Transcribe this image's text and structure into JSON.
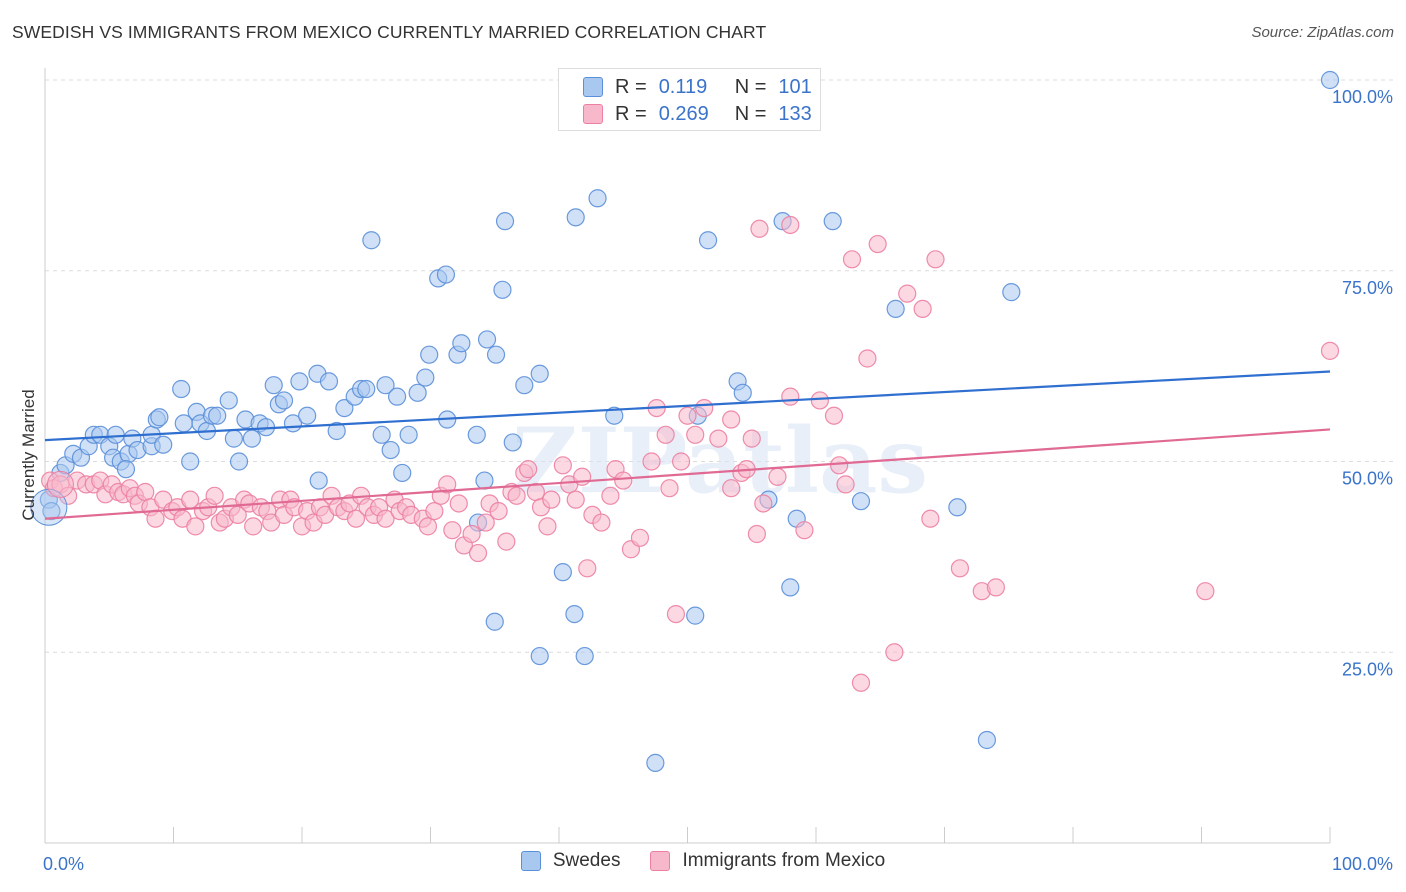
{
  "title": "SWEDISH VS IMMIGRANTS FROM MEXICO CURRENTLY MARRIED CORRELATION CHART",
  "source": "Source: ZipAtlas.com",
  "watermark": "ZIPatlas",
  "legend": {
    "rows": [
      {
        "r_label": "R =",
        "r_value": "0.119",
        "n_label": "N =",
        "n_value": "101",
        "swatch_color": "#a9c8f0"
      },
      {
        "r_label": "R =",
        "r_value": "0.269",
        "n_label": "N =",
        "n_value": "133",
        "swatch_color": "#f7b8cb"
      }
    ]
  },
  "bottom_legend": [
    {
      "label": "Swedes",
      "color": "#a9c8f0"
    },
    {
      "label": "Immigrants from Mexico",
      "color": "#f7b8cb"
    }
  ],
  "chart_data": {
    "type": "scatter",
    "title": "SWEDISH VS IMMIGRANTS FROM MEXICO CURRENTLY MARRIED CORRELATION CHART",
    "ylabel": "Currently Married",
    "xlabel": "",
    "xlim": [
      0,
      100
    ],
    "ylim": [
      0,
      100
    ],
    "x_tick_labels": [
      "0.0%",
      "100.0%"
    ],
    "y_tick_labels": [
      "25.0%",
      "50.0%",
      "75.0%",
      "100.0%"
    ],
    "y_ticks": [
      25,
      50,
      75,
      100
    ],
    "grid": "horizontal dashed",
    "series": [
      {
        "name": "Swedes",
        "color": "#5b8fd9",
        "fill": "#a9c8f0",
        "line_color": "#2f6fd0",
        "trend": {
          "x": [
            0,
            100
          ],
          "y": [
            52.8,
            61.8
          ]
        },
        "points": [
          [
            0.3,
            45
          ],
          [
            0.5,
            43.5
          ],
          [
            1.2,
            48.5
          ],
          [
            1.6,
            49.5
          ],
          [
            2.2,
            51
          ],
          [
            2.8,
            50.5
          ],
          [
            3.4,
            52
          ],
          [
            3.8,
            53.5
          ],
          [
            4.3,
            53.5
          ],
          [
            5,
            52
          ],
          [
            5.3,
            50.5
          ],
          [
            5.9,
            50
          ],
          [
            6.5,
            51
          ],
          [
            6.3,
            49
          ],
          [
            6.8,
            53
          ],
          [
            7.2,
            51.5
          ],
          [
            8.3,
            52
          ],
          [
            8.3,
            53.5
          ],
          [
            8.7,
            55.5
          ],
          [
            8.9,
            55.8
          ],
          [
            9.2,
            52.2
          ],
          [
            10.6,
            59.5
          ],
          [
            10.8,
            55
          ],
          [
            11.3,
            50
          ],
          [
            11.8,
            56.5
          ],
          [
            12.1,
            55
          ],
          [
            12.6,
            54
          ],
          [
            13,
            56
          ],
          [
            13.4,
            56
          ],
          [
            14.3,
            58
          ],
          [
            14.7,
            53
          ],
          [
            15.1,
            50
          ],
          [
            15.6,
            55.5
          ],
          [
            16.1,
            53
          ],
          [
            16.7,
            55
          ],
          [
            17.8,
            60
          ],
          [
            18.2,
            57.5
          ],
          [
            18.6,
            58
          ],
          [
            19.3,
            55
          ],
          [
            19.8,
            60.5
          ],
          [
            20.4,
            56
          ],
          [
            21.2,
            61.5
          ],
          [
            22.1,
            60.5
          ],
          [
            22.7,
            54
          ],
          [
            23.3,
            57
          ],
          [
            24.1,
            58.5
          ],
          [
            24.6,
            59.5
          ],
          [
            25,
            59.5
          ],
          [
            25.4,
            79
          ],
          [
            26.2,
            53.5
          ],
          [
            26.5,
            60
          ],
          [
            26.9,
            51.5
          ],
          [
            27.4,
            58.5
          ],
          [
            27.8,
            48.5
          ],
          [
            28.3,
            53.5
          ],
          [
            29,
            59
          ],
          [
            29.6,
            61
          ],
          [
            29.9,
            64
          ],
          [
            30.6,
            74
          ],
          [
            31.2,
            74.5
          ],
          [
            31.3,
            55.5
          ],
          [
            32.1,
            64
          ],
          [
            32.4,
            65.5
          ],
          [
            33.6,
            53.5
          ],
          [
            34.2,
            47.5
          ],
          [
            34.4,
            66
          ],
          [
            35.1,
            64
          ],
          [
            35.6,
            72.5
          ],
          [
            35.8,
            81.5
          ],
          [
            36.4,
            52.5
          ],
          [
            37.3,
            60
          ],
          [
            38.5,
            61.5
          ],
          [
            40.3,
            35.5
          ],
          [
            41.2,
            30
          ],
          [
            41.3,
            82
          ],
          [
            42,
            24.5
          ],
          [
            43,
            84.5
          ],
          [
            44.3,
            56
          ],
          [
            47.5,
            10.5
          ],
          [
            50.8,
            56
          ],
          [
            50.6,
            29.8
          ],
          [
            51.6,
            79
          ],
          [
            53.9,
            60.5
          ],
          [
            54.3,
            59
          ],
          [
            56.3,
            45
          ],
          [
            57.4,
            81.5
          ],
          [
            58,
            33.5
          ],
          [
            58.5,
            42.5
          ],
          [
            61.3,
            81.5
          ],
          [
            63.5,
            44.8
          ],
          [
            66.2,
            70
          ],
          [
            71,
            44
          ],
          [
            73.3,
            13.5
          ],
          [
            75.2,
            72.2
          ],
          [
            100,
            100
          ],
          [
            5.5,
            53.5
          ],
          [
            21.3,
            47.5
          ],
          [
            17.2,
            54.5
          ],
          [
            33.7,
            42
          ],
          [
            35,
            29
          ],
          [
            38.5,
            24.5
          ]
        ]
      },
      {
        "name": "Immigrants from Mexico",
        "color": "#ec7fa2",
        "fill": "#f7b8cb",
        "line_color": "#e06a93",
        "trend": {
          "x": [
            0,
            100
          ],
          "y": [
            42.5,
            54.2
          ]
        },
        "points": [
          [
            0.4,
            47.5
          ],
          [
            0.7,
            46.5
          ],
          [
            1.2,
            47
          ],
          [
            1.8,
            45.5
          ],
          [
            2.5,
            47.5
          ],
          [
            3.2,
            47
          ],
          [
            3.8,
            47
          ],
          [
            4.3,
            47.5
          ],
          [
            4.7,
            45.7
          ],
          [
            5.2,
            47
          ],
          [
            5.7,
            46
          ],
          [
            6.1,
            45.7
          ],
          [
            6.6,
            46.5
          ],
          [
            7,
            45.5
          ],
          [
            7.3,
            44.5
          ],
          [
            7.8,
            46
          ],
          [
            8.2,
            44
          ],
          [
            8.6,
            42.5
          ],
          [
            9.2,
            45
          ],
          [
            9.9,
            43.5
          ],
          [
            10.3,
            44
          ],
          [
            10.7,
            42.5
          ],
          [
            11.3,
            45
          ],
          [
            11.7,
            41.5
          ],
          [
            12.3,
            43.5
          ],
          [
            12.7,
            44
          ],
          [
            13.2,
            45.5
          ],
          [
            13.6,
            42
          ],
          [
            14,
            42.5
          ],
          [
            14.5,
            44
          ],
          [
            15,
            43
          ],
          [
            15.5,
            45
          ],
          [
            15.9,
            44.5
          ],
          [
            16.2,
            41.5
          ],
          [
            16.8,
            44
          ],
          [
            17.3,
            43.5
          ],
          [
            17.6,
            42
          ],
          [
            18.3,
            45
          ],
          [
            18.6,
            43
          ],
          [
            19.1,
            45
          ],
          [
            19.4,
            44
          ],
          [
            20,
            41.5
          ],
          [
            20.4,
            43.5
          ],
          [
            20.9,
            42
          ],
          [
            21.4,
            44
          ],
          [
            21.8,
            43
          ],
          [
            22.3,
            45.5
          ],
          [
            22.8,
            44
          ],
          [
            23.3,
            43.5
          ],
          [
            23.7,
            44.5
          ],
          [
            24.2,
            42.5
          ],
          [
            24.6,
            45.5
          ],
          [
            25.1,
            44
          ],
          [
            25.6,
            43
          ],
          [
            26,
            44
          ],
          [
            26.5,
            42.5
          ],
          [
            27.2,
            45
          ],
          [
            27.6,
            43.5
          ],
          [
            28.1,
            44
          ],
          [
            28.5,
            43
          ],
          [
            29.4,
            42.5
          ],
          [
            29.8,
            41.5
          ],
          [
            30.3,
            43.5
          ],
          [
            30.8,
            45.5
          ],
          [
            31.3,
            47
          ],
          [
            31.7,
            41
          ],
          [
            32.2,
            44.5
          ],
          [
            32.6,
            39
          ],
          [
            33.2,
            40.5
          ],
          [
            33.7,
            38
          ],
          [
            34.3,
            42
          ],
          [
            34.6,
            44.5
          ],
          [
            35.3,
            43.5
          ],
          [
            35.9,
            39.5
          ],
          [
            36.3,
            46
          ],
          [
            36.7,
            45.5
          ],
          [
            37.3,
            48.5
          ],
          [
            37.6,
            49
          ],
          [
            38.2,
            46
          ],
          [
            38.6,
            44
          ],
          [
            39.1,
            41.5
          ],
          [
            39.4,
            45
          ],
          [
            40.3,
            49.5
          ],
          [
            40.8,
            47
          ],
          [
            41.3,
            45
          ],
          [
            41.8,
            48
          ],
          [
            42.2,
            36
          ],
          [
            42.6,
            43
          ],
          [
            43.3,
            42
          ],
          [
            44,
            45.5
          ],
          [
            44.4,
            49
          ],
          [
            45,
            47.5
          ],
          [
            45.6,
            38.5
          ],
          [
            46.3,
            40
          ],
          [
            47.2,
            50
          ],
          [
            47.6,
            57
          ],
          [
            48.3,
            53.5
          ],
          [
            48.6,
            46.5
          ],
          [
            49.1,
            30
          ],
          [
            49.5,
            50
          ],
          [
            50,
            56
          ],
          [
            50.6,
            53.5
          ],
          [
            51.3,
            57
          ],
          [
            52.4,
            53
          ],
          [
            53.4,
            55.5
          ],
          [
            54.2,
            48.5
          ],
          [
            54.6,
            49
          ],
          [
            55,
            53
          ],
          [
            55.4,
            40.5
          ],
          [
            55.9,
            44.5
          ],
          [
            57,
            48
          ],
          [
            58,
            58.5
          ],
          [
            59.1,
            41
          ],
          [
            60.3,
            58
          ],
          [
            61.4,
            56
          ],
          [
            61.8,
            49.5
          ],
          [
            62.3,
            47
          ],
          [
            62.8,
            76.5
          ],
          [
            63.5,
            21
          ],
          [
            64,
            63.5
          ],
          [
            64.8,
            78.5
          ],
          [
            66.1,
            25
          ],
          [
            67.1,
            72
          ],
          [
            68.3,
            70
          ],
          [
            68.9,
            42.5
          ],
          [
            69.3,
            76.5
          ],
          [
            71.2,
            36
          ],
          [
            72.9,
            33
          ],
          [
            74,
            33.5
          ],
          [
            90.3,
            33
          ],
          [
            100,
            64.5
          ],
          [
            55.6,
            80.5
          ],
          [
            58,
            81
          ],
          [
            53.4,
            46.5
          ]
        ]
      }
    ]
  }
}
